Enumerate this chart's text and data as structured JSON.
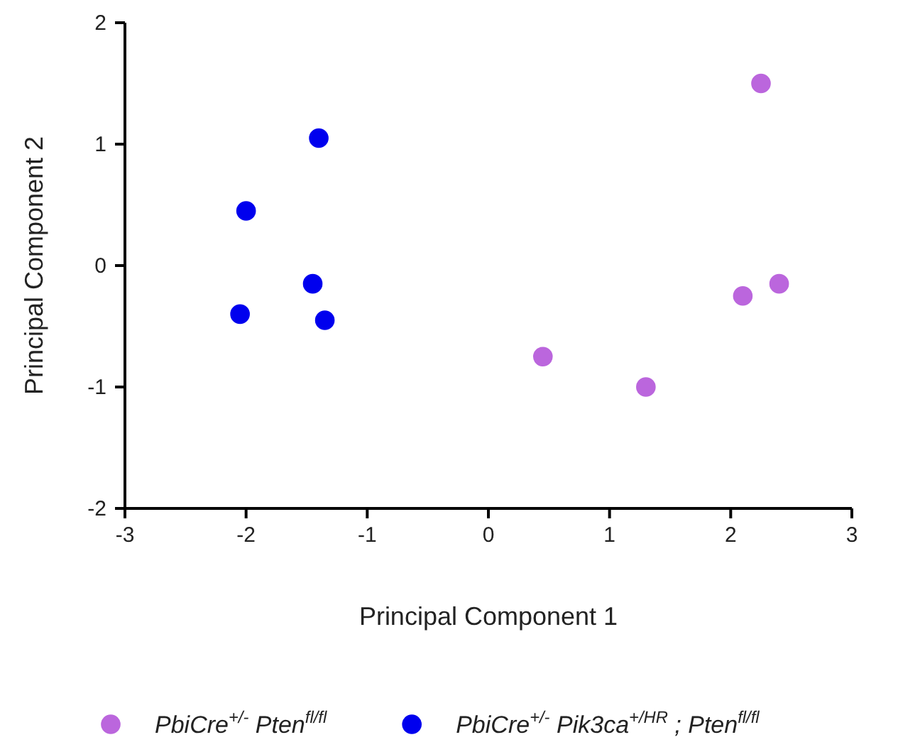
{
  "chart_data": {
    "type": "scatter",
    "xlabel": "Principal Component 1",
    "ylabel": "Principal Component 2",
    "xlim": [
      -3,
      3
    ],
    "xticks": [
      -3,
      -2,
      -1,
      0,
      1,
      2,
      3
    ],
    "ylim": [
      -2,
      2
    ],
    "yticks": [
      -2,
      -1,
      0,
      1,
      2
    ],
    "grid": false,
    "legend": "bottom",
    "marker": "circle",
    "series": [
      {
        "name": "PbiCre$^{+/-}$ Pten$^{fl/fl}$",
        "color": "#bb66dd",
        "x": [
          2.25,
          2.1,
          2.4,
          0.45,
          1.3
        ],
        "values": [
          1.5,
          -0.25,
          -0.15,
          -0.75,
          -1.0
        ]
      },
      {
        "name": "PbiCre$^{+/-}$ Pik3ca$^{+/HR}$ ; Pten$^{fl/fl}$",
        "color": "#0000ee",
        "x": [
          -1.4,
          -2.0,
          -1.45,
          -2.05,
          -1.35
        ],
        "values": [
          1.05,
          0.45,
          -0.15,
          -0.4,
          -0.45
        ]
      }
    ]
  }
}
